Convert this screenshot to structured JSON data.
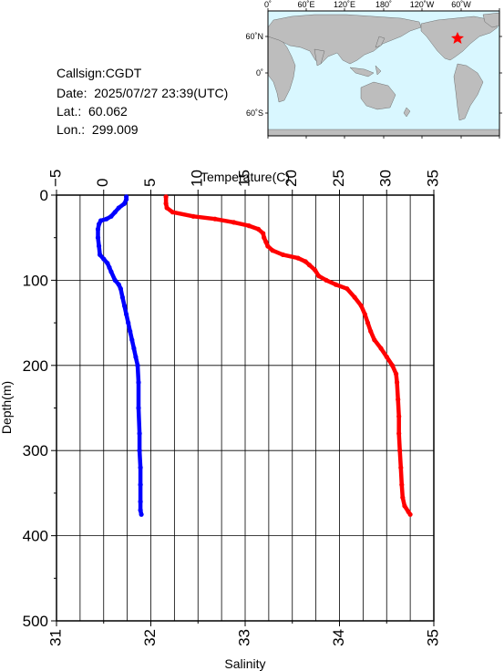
{
  "header": {
    "callsign": "Callsign:CGDT",
    "date": "Date:  2025/07/27 23:39(UTC)",
    "lat": "Lat.:  60.062",
    "lon": "Lon.:  299.009"
  },
  "map": {
    "lon_labels": [
      "0˚",
      "60˚E",
      "120˚E",
      "180˚",
      "120˚W",
      "60˚W"
    ],
    "lat_labels": [
      "60˚N",
      "0˚",
      "60˚S"
    ],
    "ocean_color": "#d9f7ff",
    "land_color": "#bdbdbd",
    "marker_color": "#ff0000",
    "marker_icon": "star-icon"
  },
  "chart_data": {
    "type": "line",
    "title": "",
    "ylabel": "Depth(m)",
    "ylim": [
      0,
      500
    ],
    "y_inverted": true,
    "y_ticks": [
      "0",
      "100",
      "200",
      "300",
      "400",
      "500"
    ],
    "grid": true,
    "top_axis": {
      "label": "Temperature(C)",
      "lim": [
        -5,
        35
      ],
      "ticks": [
        "−5",
        "0",
        "5",
        "10",
        "15",
        "20",
        "25",
        "30",
        "35"
      ]
    },
    "bottom_axis": {
      "label": "Salinity",
      "lim": [
        31,
        35
      ],
      "ticks": [
        "31",
        "32",
        "33",
        "34",
        "35"
      ]
    },
    "series": [
      {
        "color": "#ff0000",
        "axis": "top",
        "depth": [
          2,
          10,
          15,
          20,
          25,
          28,
          32,
          36,
          40,
          45,
          50,
          55,
          60,
          65,
          70,
          74,
          78,
          82,
          88,
          95,
          100,
          105,
          110,
          120,
          130,
          140,
          150,
          160,
          170,
          180,
          190,
          200,
          210,
          220,
          240,
          260,
          280,
          300,
          320,
          340,
          355,
          365,
          372,
          375
        ],
        "values": [
          6.6,
          6.6,
          6.7,
          7.3,
          9.5,
          11.8,
          13.8,
          15.4,
          16.4,
          16.9,
          17.0,
          17.2,
          17.4,
          17.9,
          19.0,
          20.6,
          21.4,
          21.8,
          22.4,
          22.8,
          23.6,
          24.6,
          25.8,
          26.6,
          27.3,
          27.7,
          28.0,
          28.3,
          28.7,
          29.4,
          30.0,
          30.6,
          31.0,
          31.1,
          31.2,
          31.3,
          31.3,
          31.4,
          31.5,
          31.6,
          31.7,
          31.9,
          32.3,
          32.5
        ]
      },
      {
        "color": "#0000ff",
        "axis": "bottom",
        "depth": [
          2,
          5,
          10,
          15,
          20,
          25,
          28,
          30,
          34,
          40,
          50,
          60,
          70,
          75,
          80,
          85,
          90,
          100,
          105,
          110,
          120,
          130,
          140,
          150,
          160,
          170,
          180,
          190,
          200,
          220,
          250,
          280,
          300,
          320,
          340,
          360,
          370,
          375
        ],
        "values": [
          31.74,
          31.74,
          31.72,
          31.66,
          31.62,
          31.58,
          31.53,
          31.47,
          31.45,
          31.44,
          31.44,
          31.45,
          31.46,
          31.5,
          31.54,
          31.56,
          31.58,
          31.62,
          31.66,
          31.68,
          31.7,
          31.72,
          31.74,
          31.76,
          31.78,
          31.8,
          31.82,
          31.84,
          31.86,
          31.87,
          31.87,
          31.88,
          31.88,
          31.89,
          31.89,
          31.89,
          31.89,
          31.9
        ]
      }
    ]
  }
}
